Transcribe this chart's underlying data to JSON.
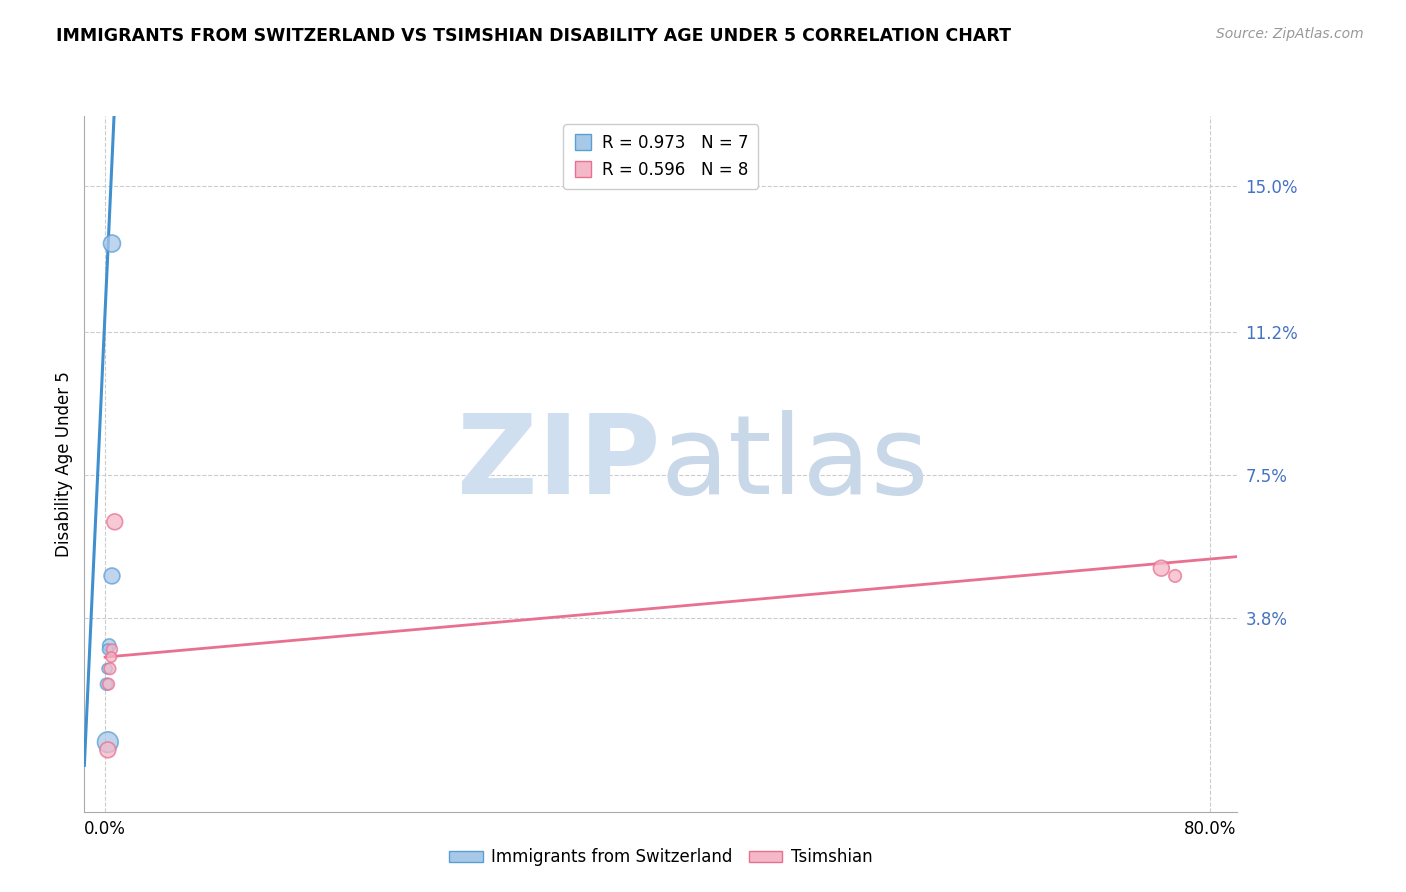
{
  "title": "IMMIGRANTS FROM SWITZERLAND VS TSIMSHIAN DISABILITY AGE UNDER 5 CORRELATION CHART",
  "source": "Source: ZipAtlas.com",
  "ylabel_label": "Disability Age Under 5",
  "xlim": [
    -1.5,
    82.0
  ],
  "ylim": [
    -1.2,
    16.8
  ],
  "yticks": [
    15.0,
    11.2,
    7.5,
    3.8
  ],
  "xticks": [
    0.0,
    80.0
  ],
  "xlabel_tick_labels": [
    "0.0%",
    "80.0%"
  ],
  "legend_R1": "R = 0.973",
  "legend_N1": "N = 7",
  "legend_R2": "R = 0.596",
  "legend_N2": "N = 8",
  "legend_label1": "Immigrants from Switzerland",
  "legend_label2": "Tsimshian",
  "blue_fill": "#a8c8e8",
  "blue_edge": "#5a9fd4",
  "pink_fill": "#f4b8c8",
  "pink_edge": "#e87090",
  "blue_line_color": "#4090d0",
  "pink_line_color": "#e87090",
  "watermark_color": "#d0dff0",
  "blue_scatter_x": [
    0.5,
    0.5,
    0.3,
    0.2,
    0.15,
    0.1,
    0.2
  ],
  "blue_scatter_y": [
    13.5,
    4.9,
    3.1,
    3.0,
    2.5,
    2.1,
    0.6
  ],
  "blue_scatter_sizes": [
    150,
    130,
    90,
    60,
    55,
    75,
    220
  ],
  "pink_scatter_x": [
    0.7,
    0.5,
    0.35,
    0.25,
    0.45,
    76.5,
    77.5,
    0.2
  ],
  "pink_scatter_y": [
    6.3,
    3.0,
    2.5,
    2.1,
    2.8,
    5.1,
    4.9,
    0.4
  ],
  "pink_scatter_sizes": [
    130,
    60,
    70,
    70,
    55,
    130,
    80,
    130
  ],
  "blue_line_x": [
    -1.5,
    0.65
  ],
  "blue_line_y": [
    0.0,
    16.8
  ],
  "pink_line_x": [
    0.0,
    82.0
  ],
  "pink_line_y": [
    2.8,
    5.4
  ],
  "title_fontsize": 12.5,
  "source_fontsize": 10,
  "tick_fontsize": 12,
  "legend_fontsize": 12,
  "ylabel_fontsize": 12
}
